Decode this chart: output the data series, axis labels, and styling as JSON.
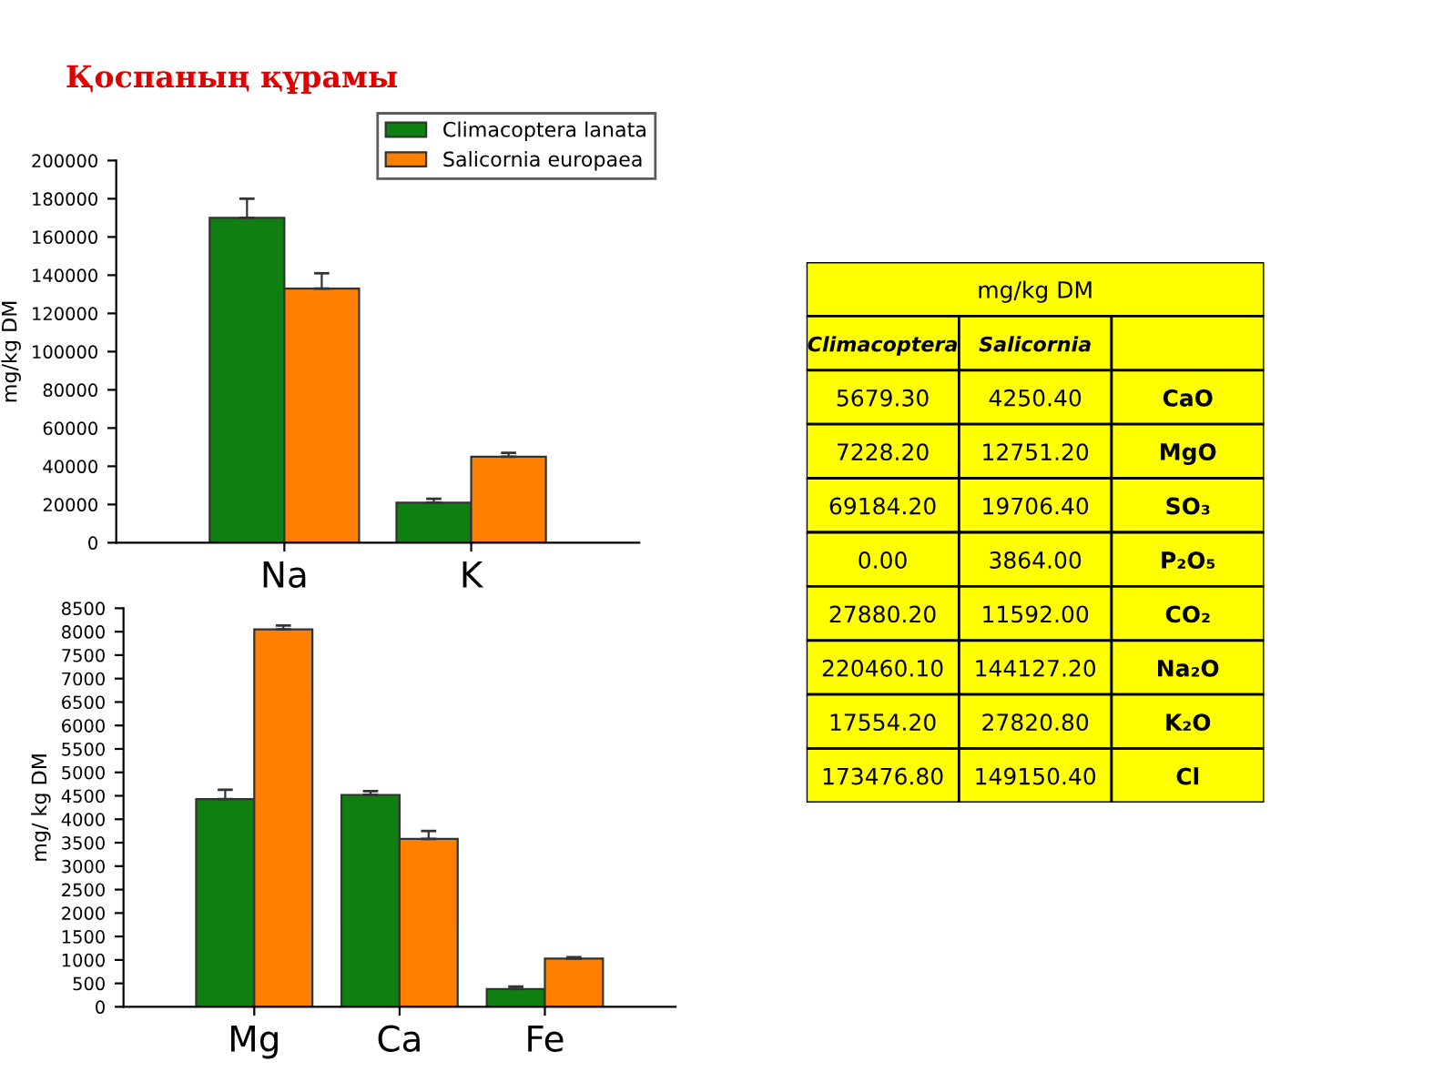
{
  "chart_data": [
    {
      "type": "bar",
      "title": "Қоспаның құрамы",
      "ylabel": "mg/kg DM",
      "categories": [
        "Na",
        "K"
      ],
      "ylim": [
        0,
        200000
      ],
      "yticks": [
        0,
        20000,
        40000,
        60000,
        80000,
        100000,
        120000,
        140000,
        160000,
        180000,
        200000
      ],
      "legend": "top right",
      "grid": false,
      "series": [
        {
          "name": "Climacoptera lanata",
          "color": "#0f7f12",
          "values": [
            170000,
            21000
          ],
          "errors": [
            [
              170000,
              180000
            ],
            [
              21000,
              23000
            ]
          ]
        },
        {
          "name": "Salicornia europaea",
          "color": "#ff8000",
          "values": [
            133000,
            45000
          ],
          "errors": [
            [
              133000,
              141000
            ],
            [
              45000,
              47000
            ]
          ]
        }
      ]
    },
    {
      "type": "bar",
      "ylabel": "mg/ kg DM",
      "categories": [
        "Mg",
        "Ca",
        "Fe"
      ],
      "ylim": [
        0,
        8500
      ],
      "yticks": [
        0,
        500,
        1000,
        1500,
        2000,
        2500,
        3000,
        3500,
        4000,
        4500,
        5000,
        5500,
        6000,
        6500,
        7000,
        7500,
        8000,
        8500
      ],
      "grid": false,
      "series": [
        {
          "color": "#0f7f12",
          "values": [
            4430,
            4520,
            380
          ],
          "errors": [
            [
              4430,
              4630
            ],
            [
              4520,
              4600
            ],
            [
              380,
              430
            ]
          ]
        },
        {
          "color": "#ff8000",
          "values": [
            8050,
            3580,
            1030
          ],
          "errors": [
            [
              8050,
              8130
            ],
            [
              3580,
              3750
            ],
            [
              1030,
              1060
            ]
          ]
        }
      ]
    },
    {
      "type": "other",
      "title": "mg/kg DM",
      "color": "#ffff00",
      "categories": [
        "Climacoptera",
        "Salicornia",
        null
      ],
      "annotations": [
        "5679.30",
        "4250.40",
        "CaO",
        "7228.20",
        "12751.20",
        "MgO",
        "69184.20",
        "19706.40",
        "SO₃",
        "0.00",
        "3864.00",
        "P₂O₅",
        "27880.20",
        "11592.00",
        "CO₂",
        "220460.10",
        "144127.20",
        "Na₂O",
        "17554.20",
        "27820.80",
        "K₂O",
        "173476.80",
        "149150.40",
        "Cl"
      ]
    }
  ]
}
